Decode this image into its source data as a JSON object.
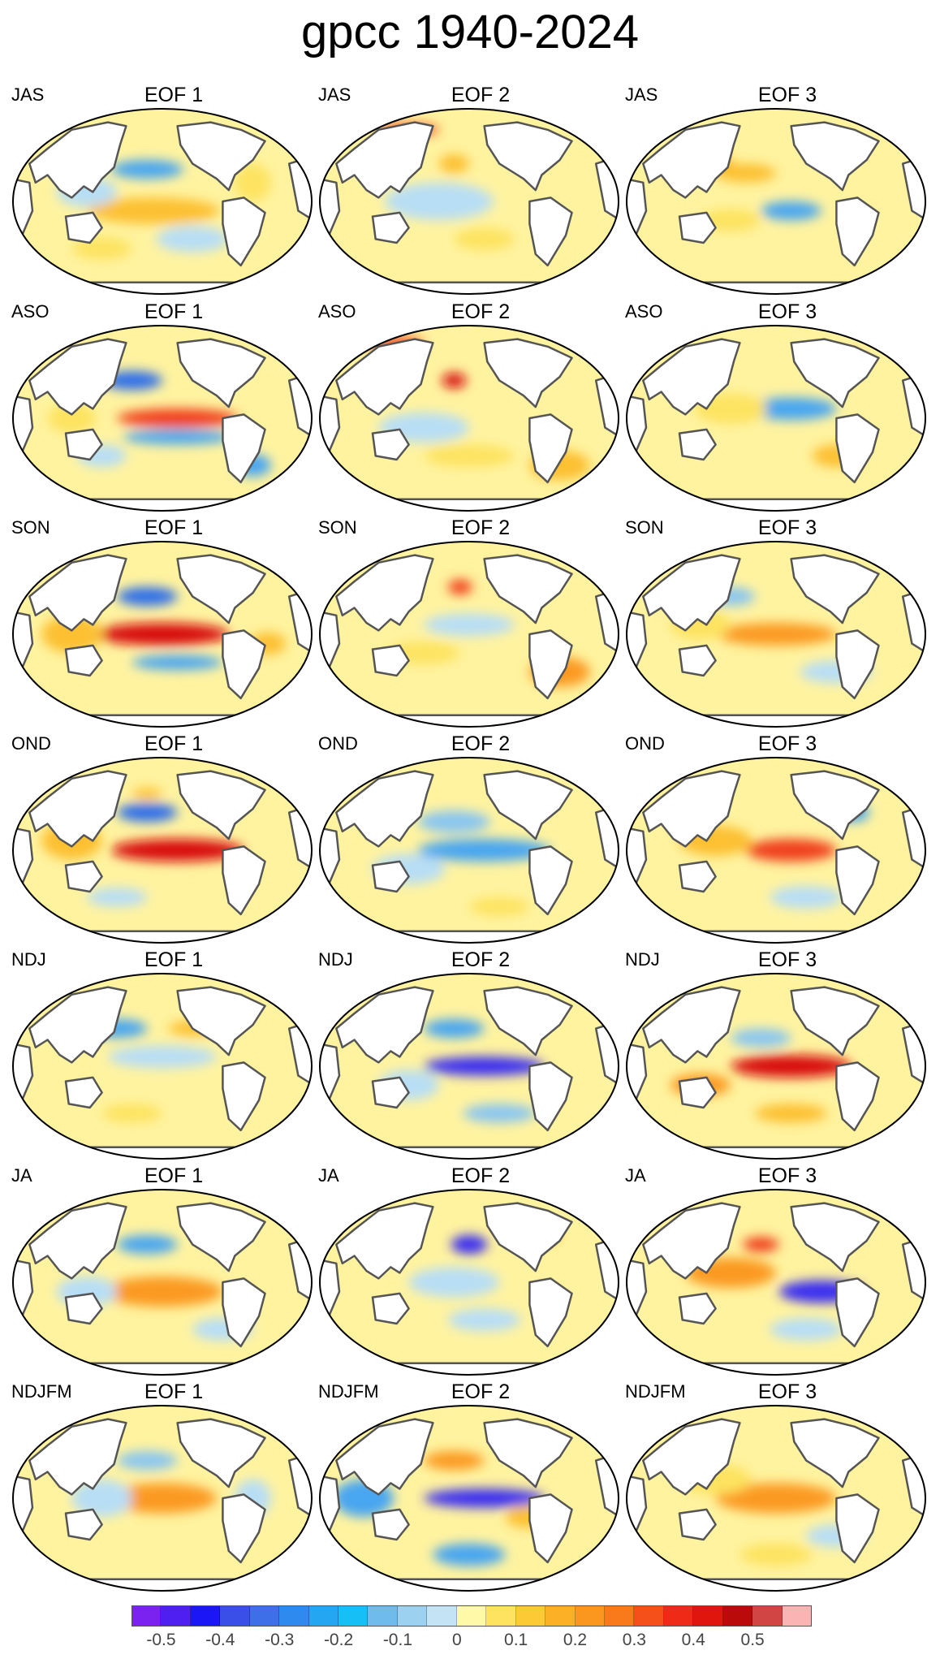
{
  "title": "gpcc 1940-2024",
  "panels": [
    {
      "season": "JAS",
      "eof": "EOF 1",
      "pattern": "jas1"
    },
    {
      "season": "JAS",
      "eof": "EOF 2",
      "pattern": "jas2"
    },
    {
      "season": "JAS",
      "eof": "EOF 3",
      "pattern": "jas3"
    },
    {
      "season": "ASO",
      "eof": "EOF 1",
      "pattern": "aso1"
    },
    {
      "season": "ASO",
      "eof": "EOF 2",
      "pattern": "aso2"
    },
    {
      "season": "ASO",
      "eof": "EOF 3",
      "pattern": "aso3"
    },
    {
      "season": "SON",
      "eof": "EOF 1",
      "pattern": "son1"
    },
    {
      "season": "SON",
      "eof": "EOF 2",
      "pattern": "son2"
    },
    {
      "season": "SON",
      "eof": "EOF 3",
      "pattern": "son3"
    },
    {
      "season": "OND",
      "eof": "EOF 1",
      "pattern": "ond1"
    },
    {
      "season": "OND",
      "eof": "EOF 2",
      "pattern": "ond2"
    },
    {
      "season": "OND",
      "eof": "EOF 3",
      "pattern": "ond3"
    },
    {
      "season": "NDJ",
      "eof": "EOF 1",
      "pattern": "ndj1"
    },
    {
      "season": "NDJ",
      "eof": "EOF 2",
      "pattern": "ndj2"
    },
    {
      "season": "NDJ",
      "eof": "EOF 3",
      "pattern": "ndj3"
    },
    {
      "season": "JA",
      "eof": "EOF 1",
      "pattern": "ja1"
    },
    {
      "season": "JA",
      "eof": "EOF 2",
      "pattern": "ja2"
    },
    {
      "season": "JA",
      "eof": "EOF 3",
      "pattern": "ja3"
    },
    {
      "season": "NDJFM",
      "eof": "EOF 1",
      "pattern": "ndjfm1"
    },
    {
      "season": "NDJFM",
      "eof": "EOF 2",
      "pattern": "ndjfm2"
    },
    {
      "season": "NDJFM",
      "eof": "EOF 3",
      "pattern": "ndjfm3"
    }
  ],
  "colorbar": {
    "colors": [
      "#7b22f0",
      "#4f1ef0",
      "#1a16f5",
      "#3a4ee8",
      "#3f6fe8",
      "#2f8af0",
      "#24a6f2",
      "#16bff5",
      "#6fbcec",
      "#9dd1f0",
      "#c4e3f5",
      "#fff9a8",
      "#fde360",
      "#fcca35",
      "#fbb025",
      "#fb961e",
      "#f97a1a",
      "#f5501a",
      "#ef2a16",
      "#e0160e",
      "#bb0a0a",
      "#d24545",
      "#fbb4b4"
    ],
    "ticks": [
      "-0.5",
      "-0.4",
      "-0.3",
      "-0.2",
      "-0.1",
      "0",
      "0.1",
      "0.2",
      "0.3",
      "0.4",
      "0.5"
    ]
  }
}
